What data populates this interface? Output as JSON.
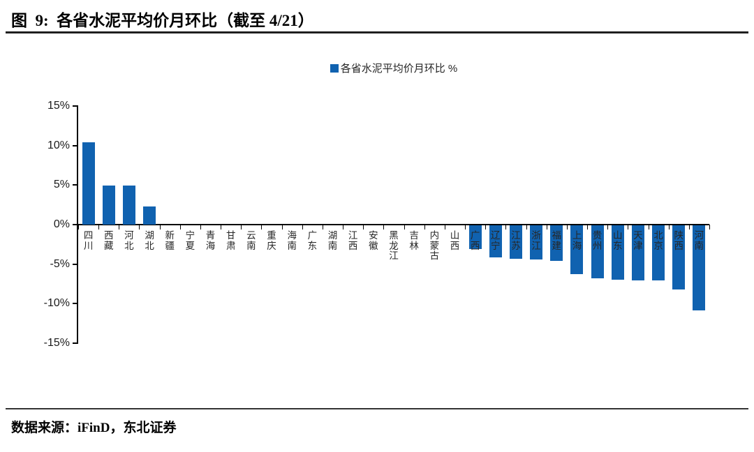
{
  "figure": {
    "title": "图  9:  各省水泥平均价月环比（截至 4/21）",
    "source": "数据来源：iFinD，东北证券"
  },
  "colors": {
    "bar": "#1062B0",
    "title_rule": "#1F1F1F",
    "footer_rule": "#333333"
  },
  "chart_data": {
    "type": "bar",
    "legend_label": "各省水泥平均价月环比 %",
    "legend_position": "top-center",
    "grid": false,
    "categories": [
      "四川",
      "西藏",
      "河北",
      "湖北",
      "新疆",
      "宁夏",
      "青海",
      "甘肃",
      "云南",
      "重庆",
      "海南",
      "广东",
      "湖南",
      "江西",
      "安徽",
      "黑龙江",
      "吉林",
      "内蒙古",
      "山西",
      "广西",
      "辽宁",
      "江苏",
      "浙江",
      "福建",
      "上海",
      "贵州",
      "山东",
      "天津",
      "北京",
      "陕西",
      "河南"
    ],
    "values": [
      10.4,
      4.9,
      4.9,
      2.3,
      0,
      0,
      0,
      0,
      0,
      0,
      0,
      0,
      0,
      0,
      0,
      0,
      0,
      0,
      0,
      -3.0,
      -4.1,
      -4.2,
      -4.3,
      -4.5,
      -6.2,
      -6.7,
      -6.9,
      -7.0,
      -7.0,
      -8.1,
      -10.8
    ],
    "ylim": [
      -15,
      15
    ],
    "yticks": [
      15,
      10,
      5,
      0,
      -5,
      -10,
      -15
    ],
    "ytick_labels": [
      "15%",
      "10%",
      "5%",
      "0%",
      "-5%",
      "-10%",
      "-15%"
    ],
    "xlabel": "",
    "ylabel": ""
  }
}
